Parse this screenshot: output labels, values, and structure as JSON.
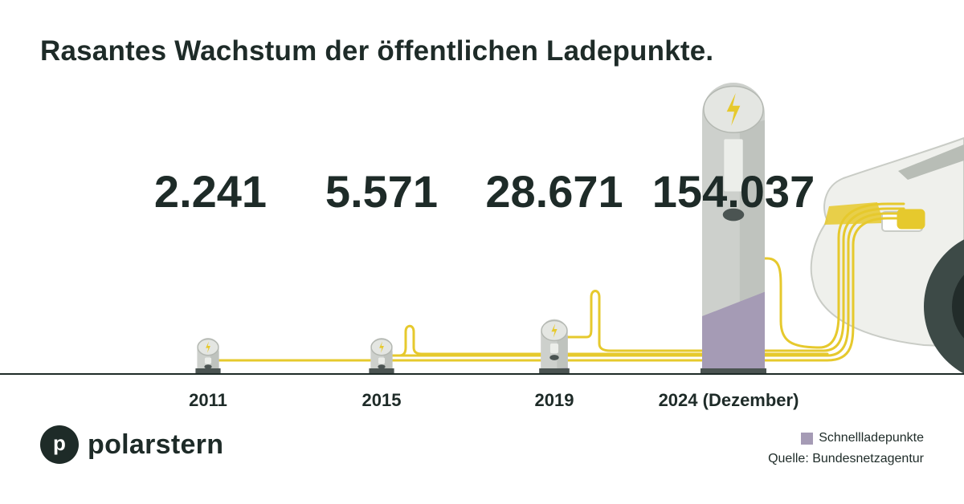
{
  "title": "Rasantes Wachstum der öffentlichen Ladepunkte.",
  "brand": {
    "logo_letter": "p",
    "name": "polarstern"
  },
  "legend": {
    "label": "Schnellladepunkte",
    "color": "#a59bb5"
  },
  "source": "Quelle: Bundesnetzagentur",
  "colors": {
    "text": "#1e2b28",
    "cable": "#e6c92d",
    "station_body": "#cdd0cc",
    "station_panel": "#b4b8b2",
    "fast_charging": "#a59bb5",
    "bolt": "#e6c92d",
    "car": "#eff0ec",
    "ground": "#1e2b28"
  },
  "icons": [
    "charging-station-icon",
    "lightning-bolt-icon",
    "charging-cable-icon",
    "electric-car-icon"
  ],
  "chart_data": {
    "type": "bar",
    "categories": [
      "2011",
      "2015",
      "2019",
      "2024 (Dezember)"
    ],
    "values": [
      2241,
      5571,
      28671,
      154037
    ],
    "value_labels": [
      "2.241",
      "5.571",
      "28.671",
      "154.037"
    ],
    "legend": [
      "Schnellladepunkte"
    ],
    "grid": false
  }
}
